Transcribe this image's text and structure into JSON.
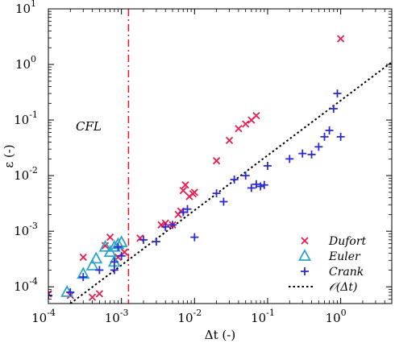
{
  "chart_data": {
    "type": "scatter",
    "title": "",
    "xlabel": "Δt (-)",
    "ylabel": "ε (-)",
    "xscale": "log",
    "yscale": "log",
    "xlim": [
      0.0001,
      5
    ],
    "ylim": [
      5e-05,
      10
    ],
    "x_ticks": [
      {
        "value": 0.0001,
        "base": "10",
        "exp": "-4"
      },
      {
        "value": 0.001,
        "base": "10",
        "exp": "-3"
      },
      {
        "value": 0.01,
        "base": "10",
        "exp": "-2"
      },
      {
        "value": 0.1,
        "base": "10",
        "exp": "-1"
      },
      {
        "value": 1,
        "base": "10",
        "exp": "0"
      }
    ],
    "y_ticks": [
      {
        "value": 0.0001,
        "base": "10",
        "exp": "-4"
      },
      {
        "value": 0.001,
        "base": "10",
        "exp": "-3"
      },
      {
        "value": 0.01,
        "base": "10",
        "exp": "-2"
      },
      {
        "value": 0.1,
        "base": "10",
        "exp": "-1"
      },
      {
        "value": 1,
        "base": "10",
        "exp": "0"
      },
      {
        "value": 10,
        "base": "10",
        "exp": "1"
      }
    ],
    "annotation": {
      "text": "CFL",
      "x": 0.00017,
      "y": 0.12
    },
    "cfl_line": {
      "x": 0.00125,
      "color": "#e8141e",
      "style": "dash-dot"
    },
    "legend": {
      "location": "lower-right"
    },
    "series": [
      {
        "name": "Dufort",
        "marker": "x",
        "color": "#ec1c4e",
        "points": [
          [
            0.0001,
            7.5e-05
          ],
          [
            0.0002,
            7e-05
          ],
          [
            0.0003,
            0.00034
          ],
          [
            0.0004,
            6.5e-05
          ],
          [
            0.0005,
            7.5e-05
          ],
          [
            0.0006,
            0.00055
          ],
          [
            0.0007,
            0.00078
          ],
          [
            0.0009,
            0.00034
          ],
          [
            0.0011,
            0.00042
          ],
          [
            0.0018,
            0.00075
          ],
          [
            0.0035,
            0.0013
          ],
          [
            0.004,
            0.0014
          ],
          [
            0.005,
            0.0013
          ],
          [
            0.006,
            0.002
          ],
          [
            0.0065,
            0.0023
          ],
          [
            0.007,
            0.0054
          ],
          [
            0.0075,
            0.0068
          ],
          [
            0.0085,
            0.0042
          ],
          [
            0.0095,
            0.0047
          ],
          [
            0.01,
            0.005
          ],
          [
            0.02,
            0.0185
          ],
          [
            0.03,
            0.043
          ],
          [
            0.04,
            0.07
          ],
          [
            0.05,
            0.085
          ],
          [
            0.06,
            0.1
          ],
          [
            0.07,
            0.12
          ],
          [
            1.0,
            2.9
          ]
        ]
      },
      {
        "name": "Euler",
        "marker": "triangle",
        "color": "#2aa5c8",
        "points": [
          [
            0.00018,
            8e-05
          ],
          [
            0.0003,
            0.00017
          ],
          [
            0.0004,
            0.00024
          ],
          [
            0.00045,
            0.00032
          ],
          [
            0.0006,
            0.00052
          ],
          [
            0.0007,
            0.00042
          ],
          [
            0.0008,
            0.00052
          ],
          [
            0.0009,
            0.00058
          ],
          [
            0.001,
            0.00063
          ],
          [
            0.0008,
            0.00028
          ]
        ]
      },
      {
        "name": "Crank",
        "marker": "plus",
        "color": "#2a2ad2",
        "points": [
          [
            0.0001,
            7e-05
          ],
          [
            0.0002,
            8e-05
          ],
          [
            0.0003,
            0.00015
          ],
          [
            0.0005,
            0.0002
          ],
          [
            0.0008,
            0.00028
          ],
          [
            0.001,
            0.00036
          ],
          [
            0.0009,
            0.00052
          ],
          [
            0.0008,
            0.0002
          ],
          [
            0.002,
            0.0007
          ],
          [
            0.003,
            0.00065
          ],
          [
            0.004,
            0.0012
          ],
          [
            0.005,
            0.0013
          ],
          [
            0.007,
            0.0022
          ],
          [
            0.008,
            0.0025
          ],
          [
            0.01,
            0.00078
          ],
          [
            0.02,
            0.0048
          ],
          [
            0.025,
            0.0034
          ],
          [
            0.035,
            0.0085
          ],
          [
            0.05,
            0.01
          ],
          [
            0.06,
            0.006
          ],
          [
            0.07,
            0.007
          ],
          [
            0.08,
            0.0064
          ],
          [
            0.1,
            0.015
          ],
          [
            0.09,
            0.0068
          ],
          [
            0.2,
            0.02
          ],
          [
            0.3,
            0.025
          ],
          [
            0.4,
            0.024
          ],
          [
            0.5,
            0.033
          ],
          [
            0.6,
            0.05
          ],
          [
            0.7,
            0.065
          ],
          [
            0.8,
            0.16
          ],
          [
            0.9,
            0.3
          ],
          [
            1.0,
            0.05
          ]
        ]
      },
      {
        "name": "𝒪(Δt)",
        "marker": "none",
        "line": "dotted",
        "color": "#000000",
        "points": [
          [
            0.0002,
            5e-05
          ],
          [
            5,
            1.1
          ]
        ]
      }
    ]
  }
}
